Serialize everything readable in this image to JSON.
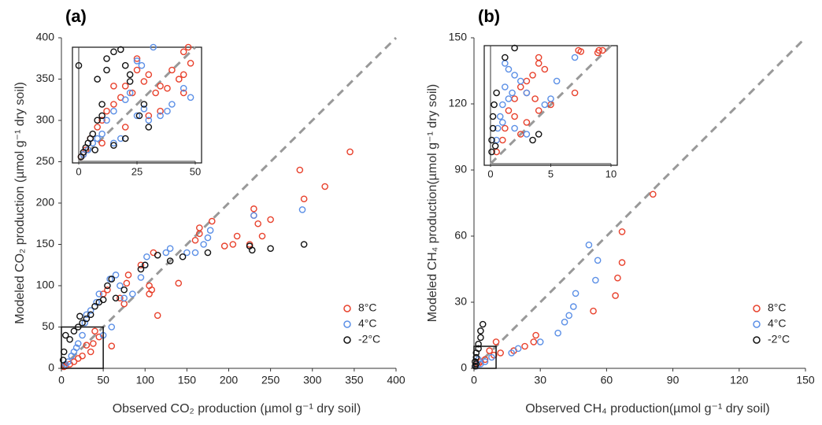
{
  "chart_data": [
    {
      "type": "scatter",
      "title": "(a)",
      "xlabel": "Observed CO₂ production (µmol g⁻¹ dry soil)",
      "ylabel": "Modeled CO₂ production (µmol g⁻¹ dry soil)",
      "xlim": [
        0,
        400
      ],
      "ylim": [
        0,
        400
      ],
      "xticks": [
        0,
        50,
        100,
        150,
        200,
        250,
        300,
        350,
        400
      ],
      "yticks": [
        0,
        50,
        100,
        150,
        200,
        250,
        300,
        350,
        400
      ],
      "diagonal": true,
      "legend": "lower right",
      "series": [
        {
          "name": "8°C",
          "color": "#e8412c",
          "x": [
            345,
            315,
            290,
            285,
            250,
            240,
            230,
            230,
            235,
            225,
            210,
            205,
            195,
            180,
            165,
            165,
            160,
            140,
            115,
            110,
            108,
            105,
            105,
            95,
            80,
            78,
            75,
            70,
            60,
            55,
            50,
            45,
            40,
            38,
            35,
            30,
            25,
            20,
            15,
            10,
            5,
            3
          ],
          "values": [
            262,
            220,
            205,
            240,
            180,
            160,
            193,
            185,
            175,
            150,
            160,
            150,
            148,
            178,
            170,
            163,
            155,
            103,
            64,
            140,
            95,
            100,
            90,
            125,
            113,
            103,
            78,
            85,
            27,
            95,
            90,
            38,
            45,
            30,
            20,
            28,
            15,
            12,
            8,
            5,
            3,
            2
          ]
        },
        {
          "name": "4°C",
          "color": "#5b8fe6",
          "x": [
            288,
            230,
            178,
            175,
            170,
            160,
            150,
            130,
            125,
            102,
            100,
            95,
            85,
            75,
            70,
            65,
            60,
            58,
            50,
            45,
            42,
            35,
            30,
            28,
            25,
            20,
            18,
            15,
            12,
            8,
            5
          ],
          "values": [
            192,
            185,
            167,
            158,
            150,
            140,
            140,
            145,
            140,
            135,
            125,
            110,
            90,
            85,
            100,
            113,
            50,
            108,
            40,
            90,
            80,
            70,
            65,
            55,
            40,
            30,
            25,
            20,
            15,
            8,
            5
          ]
        },
        {
          "name": "-2°C",
          "color": "#111111",
          "x": [
            290,
            250,
            228,
            225,
            175,
            145,
            130,
            115,
            100,
            95,
            75,
            65,
            60,
            55,
            50,
            45,
            40,
            35,
            30,
            25,
            22,
            20,
            15,
            10,
            5,
            3,
            2
          ],
          "values": [
            150,
            145,
            143,
            148,
            140,
            135,
            130,
            137,
            125,
            120,
            95,
            85,
            108,
            100,
            83,
            80,
            75,
            65,
            60,
            55,
            63,
            50,
            45,
            35,
            40,
            20,
            10
          ]
        }
      ]
    },
    {
      "type": "scatter",
      "xlim": [
        0,
        50
      ],
      "ylim": [
        0,
        50
      ],
      "xticks": [
        0,
        25,
        50
      ],
      "diagonal": true,
      "series": [
        {
          "color": "#e8412c",
          "x": [
            47,
            45,
            48,
            45,
            43,
            40,
            45,
            38,
            35,
            33,
            30,
            28,
            25,
            25,
            23,
            20,
            18,
            15,
            15,
            12,
            10,
            8,
            5,
            3,
            2,
            1,
            10,
            20,
            30,
            35
          ],
          "values": [
            50,
            48,
            43,
            38,
            36,
            40,
            30,
            32,
            33,
            30,
            38,
            35,
            45,
            40,
            30,
            33,
            28,
            25,
            33,
            22,
            18,
            15,
            10,
            5,
            3,
            2,
            8,
            15,
            20,
            22
          ]
        },
        {
          "color": "#5b8fe6",
          "x": [
            32,
            25,
            27,
            48,
            45,
            40,
            38,
            35,
            30,
            28,
            25,
            22,
            20,
            15,
            12,
            10,
            8,
            6,
            4,
            2,
            18,
            15
          ],
          "values": [
            50,
            44,
            42,
            28,
            32,
            25,
            22,
            20,
            18,
            23,
            20,
            30,
            27,
            22,
            18,
            12,
            10,
            8,
            5,
            3,
            10,
            8
          ]
        },
        {
          "color": "#111111",
          "x": [
            0,
            15,
            12,
            12,
            18,
            20,
            22,
            22,
            8,
            10,
            10,
            8,
            6,
            5,
            4,
            3,
            2,
            1,
            7,
            28,
            26,
            30,
            20,
            15
          ],
          "values": [
            42,
            48,
            45,
            40,
            49,
            42,
            38,
            35,
            36,
            25,
            20,
            18,
            12,
            10,
            8,
            6,
            4,
            2,
            5,
            25,
            20,
            15,
            10,
            7
          ]
        }
      ]
    },
    {
      "type": "scatter",
      "title": "(b)",
      "xlabel": "Observed CH₄ production(µmol g⁻¹ dry soil)",
      "ylabel": "Modeled CH₄ production(µmol g⁻¹ dry soil)",
      "xlim": [
        0,
        150
      ],
      "ylim": [
        0,
        150
      ],
      "xticks": [
        0,
        30,
        60,
        90,
        120,
        150
      ],
      "yticks": [
        0,
        30,
        60,
        90,
        120,
        150
      ],
      "diagonal": true,
      "legend": "lower right",
      "series": [
        {
          "name": "8°C",
          "color": "#e8412c",
          "x": [
            81,
            67,
            67,
            65,
            64,
            54,
            28,
            27,
            23,
            18,
            12,
            10,
            9,
            7,
            5,
            3,
            2,
            1
          ],
          "values": [
            79,
            62,
            48,
            41,
            33,
            26,
            15,
            12,
            10,
            8,
            7,
            12,
            6,
            8,
            4,
            3,
            2,
            1
          ]
        },
        {
          "name": "4°C",
          "color": "#5b8fe6",
          "x": [
            52,
            56,
            55,
            46,
            45,
            43,
            41,
            38,
            30,
            20,
            17,
            8,
            5,
            3,
            2,
            1
          ],
          "values": [
            56,
            49,
            40,
            34,
            28,
            24,
            21,
            16,
            12,
            9,
            7,
            5,
            3,
            2,
            4,
            1
          ]
        },
        {
          "name": "-2°C",
          "color": "#111111",
          "x": [
            4,
            3,
            3,
            2,
            2,
            1,
            1,
            0.5,
            0.5,
            1
          ],
          "values": [
            20,
            17,
            14,
            11,
            9,
            7,
            5,
            3,
            1,
            2
          ]
        }
      ]
    },
    {
      "type": "scatter",
      "xlim": [
        0,
        10
      ],
      "ylim": [
        0,
        10
      ],
      "xticks": [
        0,
        5,
        10
      ],
      "diagonal": true,
      "series": [
        {
          "color": "#e8412c",
          "x": [
            9,
            9.3,
            8.9,
            7.3,
            7.5,
            7,
            4,
            4,
            4.5,
            3.5,
            3,
            3,
            2.5,
            2,
            2,
            1.5,
            1.2,
            1,
            0.5,
            3,
            4,
            5,
            3.7,
            2.5
          ],
          "values": [
            9.6,
            9.6,
            9.4,
            9.6,
            9.5,
            6,
            9,
            8.5,
            8,
            7.5,
            7,
            6,
            6.5,
            5.5,
            4,
            4.5,
            3,
            2,
            1,
            3.5,
            4.5,
            5,
            5.5,
            2.5
          ]
        },
        {
          "color": "#5b8fe6",
          "x": [
            7,
            5.5,
            5,
            4.5,
            3,
            2.5,
            2,
            1.8,
            1.5,
            1.2,
            1,
            0.8,
            0.6,
            0.5,
            1,
            2,
            3,
            1.5,
            1.2
          ],
          "values": [
            9,
            7,
            5.5,
            5,
            6,
            7,
            7.5,
            6,
            5.5,
            6.5,
            5,
            4,
            3,
            2,
            3.5,
            3,
            2.5,
            8,
            8.5
          ]
        },
        {
          "color": "#111111",
          "x": [
            2,
            1.2,
            0.5,
            0.3,
            0.2,
            0.2,
            0.1,
            0.1,
            3.5,
            4,
            0.4
          ],
          "values": [
            9.8,
            9,
            6,
            5,
            4,
            3,
            2,
            1,
            2,
            2.5,
            1.5
          ]
        }
      ]
    }
  ]
}
